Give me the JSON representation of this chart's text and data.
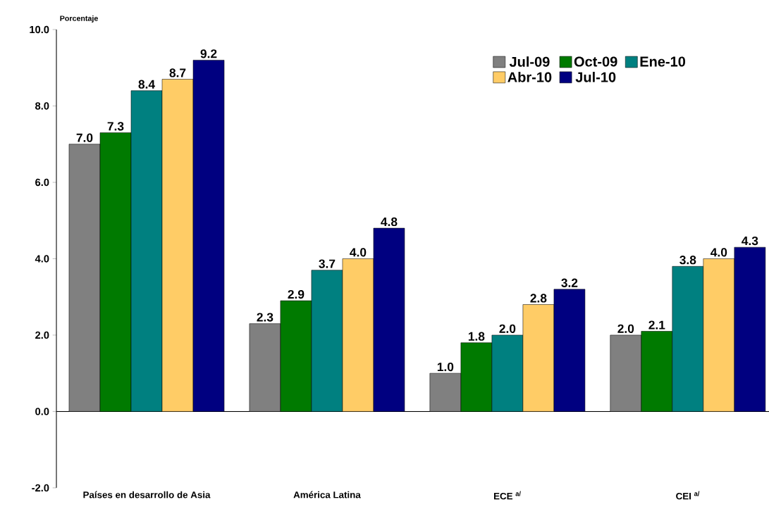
{
  "chart_data": {
    "type": "bar",
    "ylabel": "Porcentaje",
    "categories": [
      "Países en desarrollo de Asia",
      "América Latina",
      "ECE $^{a/}$",
      "CEI $^{a/}$"
    ],
    "series": [
      {
        "name": "Jul-09",
        "color": "#808080",
        "values": [
          7.0,
          2.3,
          1.0,
          2.0
        ],
        "value_labels": [
          "7.0",
          "2.3",
          "1.0",
          "2.0"
        ]
      },
      {
        "name": "Oct-09",
        "color": "#007a00",
        "values": [
          7.3,
          2.9,
          1.8,
          2.1
        ],
        "value_labels": [
          "7.3",
          "2.9",
          "1.8",
          "2.1"
        ]
      },
      {
        "name": "Ene-10",
        "color": "#008080",
        "values": [
          8.4,
          3.7,
          2.0,
          3.8
        ],
        "value_labels": [
          "8.4",
          "3.7",
          "2.0",
          "3.8"
        ]
      },
      {
        "name": "Abr-10",
        "color": "#ffcc66",
        "values": [
          8.7,
          4.0,
          2.8,
          4.0
        ],
        "value_labels": [
          "8.7",
          "4.0",
          "2.8",
          "4.0"
        ]
      },
      {
        "name": "Jul-10",
        "color": "#000080",
        "values": [
          9.2,
          4.8,
          3.2,
          4.3
        ],
        "value_labels": [
          "9.2",
          "4.8",
          "3.2",
          "4.3"
        ]
      }
    ],
    "ylim": [
      -2,
      10
    ],
    "yticks": [
      {
        "value": -2,
        "label": "-2.0"
      },
      {
        "value": 0,
        "label": "0.0"
      },
      {
        "value": 2,
        "label": "2.0"
      },
      {
        "value": 4,
        "label": "4.0"
      },
      {
        "value": 6,
        "label": "6.0"
      },
      {
        "value": 8,
        "label": "8.0"
      },
      {
        "value": 10,
        "label": "10.0"
      }
    ],
    "legend": "top right"
  }
}
